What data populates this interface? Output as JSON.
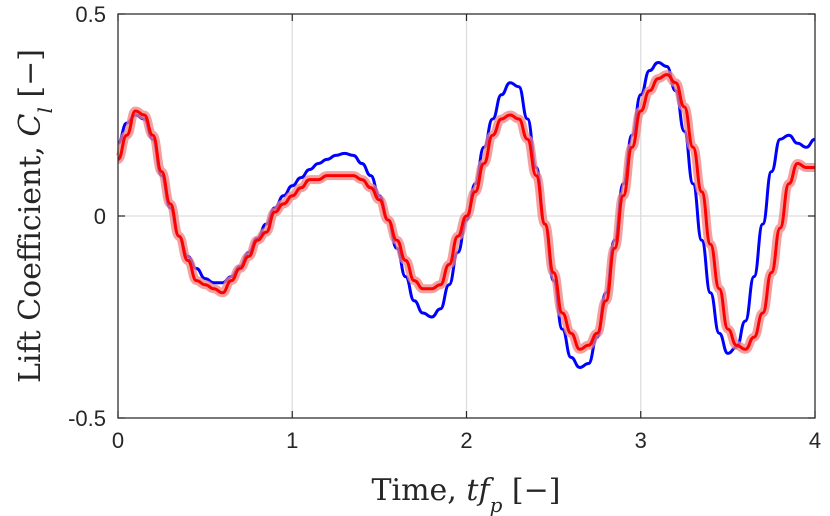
{
  "chart_data": {
    "type": "line",
    "title": "",
    "xlabel": "Time, tf_p [−]",
    "ylabel": "Lift Coefficient, C_l [−]",
    "xlim": [
      0,
      4
    ],
    "ylim": [
      -0.5,
      0.5
    ],
    "xticks": [
      0,
      1,
      2,
      3,
      4
    ],
    "yticks": [
      -0.5,
      0,
      0.5
    ],
    "xtick_labels": [
      "0",
      "1",
      "2",
      "3",
      "4"
    ],
    "ytick_labels": [
      "-0.5",
      "0",
      "0.5"
    ],
    "grid": true,
    "colors": {
      "reference": "#0000ff",
      "measured": "#ff0000",
      "measured_band": "#f08080"
    },
    "series": [
      {
        "x": [
          0,
          0.05,
          0.1,
          0.15,
          0.2,
          0.25,
          0.3,
          0.35,
          0.4,
          0.45,
          0.5,
          0.55,
          0.6,
          0.65,
          0.7,
          0.75,
          0.8,
          0.85,
          0.9,
          0.95,
          1.0,
          1.05,
          1.1,
          1.15,
          1.2,
          1.25,
          1.3,
          1.35,
          1.4,
          1.45,
          1.5,
          1.55,
          1.6,
          1.65,
          1.7,
          1.75,
          1.8,
          1.85,
          1.9,
          1.95,
          2.0,
          2.05,
          2.1,
          2.15,
          2.2,
          2.25,
          2.3,
          2.35,
          2.4,
          2.45,
          2.5,
          2.55,
          2.6,
          2.65,
          2.7,
          2.75,
          2.8,
          2.85,
          2.9,
          2.95,
          3.0,
          3.05,
          3.1,
          3.15,
          3.2,
          3.25,
          3.3,
          3.35,
          3.4,
          3.45,
          3.5,
          3.55,
          3.6,
          3.65,
          3.7,
          3.75,
          3.8,
          3.85,
          3.9,
          3.95,
          4.0
        ],
        "values": [
          0.18,
          0.23,
          0.25,
          0.24,
          0.19,
          0.1,
          0.02,
          -0.05,
          -0.1,
          -0.13,
          -0.155,
          -0.165,
          -0.165,
          -0.15,
          -0.125,
          -0.09,
          -0.055,
          -0.02,
          0.02,
          0.05,
          0.075,
          0.095,
          0.115,
          0.13,
          0.14,
          0.15,
          0.155,
          0.15,
          0.13,
          0.1,
          0.05,
          -0.01,
          -0.08,
          -0.15,
          -0.21,
          -0.24,
          -0.25,
          -0.23,
          -0.17,
          -0.09,
          -0.01,
          0.08,
          0.17,
          0.24,
          0.3,
          0.33,
          0.32,
          0.24,
          0.12,
          -0.02,
          -0.16,
          -0.28,
          -0.35,
          -0.375,
          -0.365,
          -0.3,
          -0.19,
          -0.06,
          0.08,
          0.2,
          0.3,
          0.36,
          0.38,
          0.37,
          0.31,
          0.21,
          0.08,
          -0.06,
          -0.19,
          -0.29,
          -0.34,
          -0.325,
          -0.26,
          -0.15,
          -0.02,
          0.11,
          0.19,
          0.2,
          0.18,
          0.17,
          0.19
        ]
      },
      {
        "x": [
          0,
          0.05,
          0.1,
          0.15,
          0.2,
          0.25,
          0.3,
          0.35,
          0.4,
          0.45,
          0.5,
          0.55,
          0.6,
          0.65,
          0.7,
          0.75,
          0.8,
          0.85,
          0.9,
          0.95,
          1.0,
          1.05,
          1.1,
          1.15,
          1.2,
          1.25,
          1.3,
          1.35,
          1.4,
          1.45,
          1.5,
          1.55,
          1.6,
          1.65,
          1.7,
          1.75,
          1.8,
          1.85,
          1.9,
          1.95,
          2.0,
          2.05,
          2.1,
          2.15,
          2.2,
          2.25,
          2.3,
          2.35,
          2.4,
          2.45,
          2.5,
          2.55,
          2.6,
          2.65,
          2.7,
          2.75,
          2.8,
          2.85,
          2.9,
          2.95,
          3.0,
          3.05,
          3.1,
          3.15,
          3.2,
          3.25,
          3.3,
          3.35,
          3.4,
          3.45,
          3.5,
          3.55,
          3.6,
          3.65,
          3.7,
          3.75,
          3.8,
          3.85,
          3.9,
          3.95,
          4.0
        ],
        "values": [
          0.14,
          0.2,
          0.26,
          0.25,
          0.2,
          0.11,
          0.03,
          -0.05,
          -0.11,
          -0.16,
          -0.17,
          -0.18,
          -0.19,
          -0.16,
          -0.13,
          -0.1,
          -0.06,
          -0.04,
          0.01,
          0.03,
          0.05,
          0.07,
          0.09,
          0.09,
          0.1,
          0.1,
          0.1,
          0.1,
          0.09,
          0.07,
          0.04,
          -0.01,
          -0.06,
          -0.11,
          -0.16,
          -0.18,
          -0.18,
          -0.17,
          -0.12,
          -0.05,
          0.0,
          0.06,
          0.13,
          0.2,
          0.24,
          0.25,
          0.24,
          0.19,
          0.1,
          -0.02,
          -0.14,
          -0.24,
          -0.29,
          -0.33,
          -0.32,
          -0.29,
          -0.21,
          -0.08,
          0.05,
          0.17,
          0.26,
          0.31,
          0.34,
          0.35,
          0.33,
          0.27,
          0.17,
          0.06,
          -0.07,
          -0.18,
          -0.28,
          -0.32,
          -0.33,
          -0.3,
          -0.24,
          -0.14,
          -0.03,
          0.08,
          0.13,
          0.12,
          0.12
        ]
      }
    ]
  }
}
